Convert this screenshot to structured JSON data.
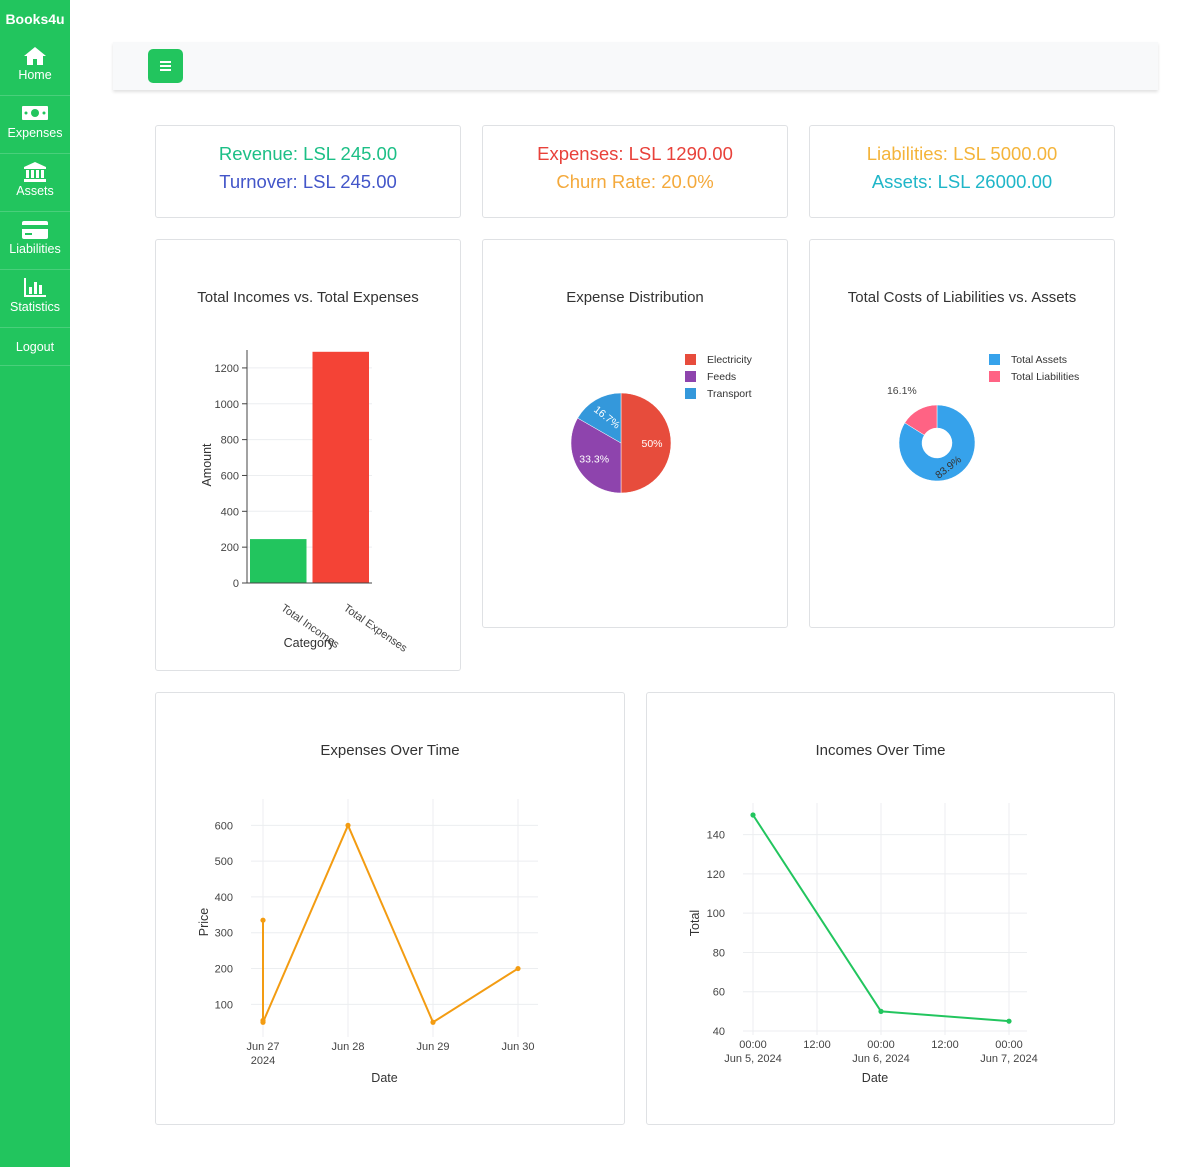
{
  "app": {
    "brand": "Books4u"
  },
  "sidebar": {
    "items": [
      {
        "label": "Home",
        "icon": "home-icon"
      },
      {
        "label": "Expenses",
        "icon": "money-bill-icon"
      },
      {
        "label": "Assets",
        "icon": "bank-icon"
      },
      {
        "label": "Liabilities",
        "icon": "credit-card-icon"
      },
      {
        "label": "Statistics",
        "icon": "bar-chart-icon"
      },
      {
        "label": "Logout"
      }
    ]
  },
  "header": {
    "menu_icon": "hamburger-icon"
  },
  "stats": [
    {
      "lines": [
        {
          "text": "Revenue: LSL 245.00",
          "color": "#1cbf86"
        },
        {
          "text": "Turnover: LSL 245.00",
          "color": "#4356c9"
        }
      ]
    },
    {
      "lines": [
        {
          "text": "Expenses: LSL 1290.00",
          "color": "#e8413a"
        },
        {
          "text": "Churn Rate: 20.0%",
          "color": "#f4a93b"
        }
      ]
    },
    {
      "lines": [
        {
          "text": "Liabilities: LSL 5000.00",
          "color": "#f4b43b"
        },
        {
          "text": "Assets: LSL 26000.00",
          "color": "#1fb6c8"
        }
      ]
    }
  ],
  "chart_data": [
    {
      "type": "bar",
      "title": "Total Incomes vs. Total Expenses",
      "xlabel": "Category",
      "ylabel": "Amount",
      "categories": [
        "Total Incomes",
        "Total Expenses"
      ],
      "values": [
        245,
        1290
      ],
      "colors": [
        "#22c55e",
        "#f44336"
      ],
      "ylim": [
        0,
        1300
      ],
      "yticks": [
        0,
        200,
        400,
        600,
        800,
        1000,
        1200
      ],
      "grid": true
    },
    {
      "type": "pie",
      "title": "Expense Distribution",
      "labels": [
        "Electricity",
        "Feeds",
        "Transport"
      ],
      "values": [
        50,
        33.3,
        16.7
      ],
      "value_labels": [
        "50%",
        "33.3%",
        "16.7%"
      ],
      "colors": [
        "#e74c3c",
        "#8e44ad",
        "#3498db"
      ],
      "legend": "top-right"
    },
    {
      "type": "pie",
      "donut": true,
      "title": "Total Costs of Liabilities vs. Assets",
      "labels": [
        "Total Assets",
        "Total Liabilities"
      ],
      "values": [
        83.9,
        16.1
      ],
      "value_labels": [
        "83.9%",
        "16.1%"
      ],
      "colors": [
        "#36a2eb",
        "#ff6384"
      ],
      "legend": "top-right"
    },
    {
      "type": "line",
      "title": "Expenses Over Time",
      "xlabel": "Date",
      "ylabel": "Price",
      "x": [
        "2024-06-27",
        "2024-06-27",
        "2024-06-27",
        "2024-06-28",
        "2024-06-29",
        "2024-06-30"
      ],
      "y": [
        335,
        55,
        50,
        600,
        50,
        200
      ],
      "color": "#f39c12",
      "xticks": [
        "Jun 27",
        "Jun 28",
        "Jun 29",
        "Jun 30"
      ],
      "xtick_sub": [
        "2024",
        "",
        "",
        ""
      ],
      "yticks": [
        100,
        200,
        300,
        400,
        500,
        600
      ],
      "ylim": [
        20,
        640
      ],
      "grid": true
    },
    {
      "type": "line",
      "title": "Incomes Over Time",
      "xlabel": "Date",
      "ylabel": "Total",
      "x": [
        "2024-06-05 00:00",
        "2024-06-06 00:00",
        "2024-06-07 00:00"
      ],
      "y": [
        150,
        50,
        45
      ],
      "color": "#22c55e",
      "xticks": [
        "00:00",
        "12:00",
        "00:00",
        "12:00",
        "00:00"
      ],
      "xtick_sub": [
        "Jun 5, 2024",
        "",
        "Jun 6, 2024",
        "",
        "Jun 7, 2024"
      ],
      "yticks": [
        40,
        60,
        80,
        100,
        120,
        140
      ],
      "ylim": [
        40,
        150
      ],
      "grid": true
    }
  ]
}
